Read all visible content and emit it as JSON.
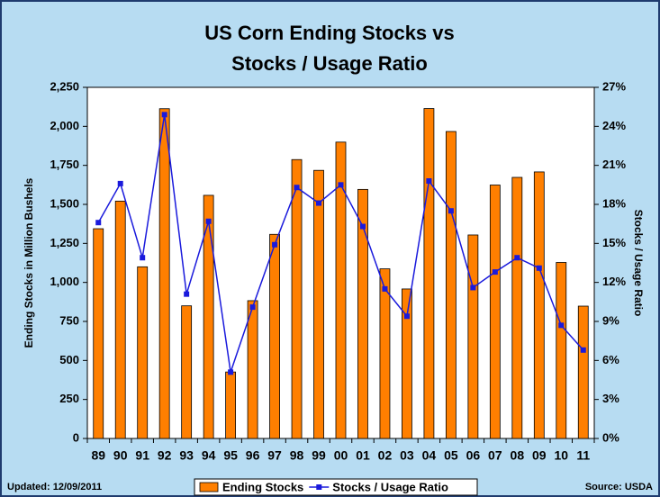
{
  "chart_data": {
    "type": "bar_line",
    "title": [
      "US Corn Ending Stocks vs",
      "Stocks / Usage Ratio"
    ],
    "y_label": "Ending Stocks in Million Bushels",
    "y2_label": "Stocks / Usage Ratio",
    "annotations": [
      "Updated: 12/09/2011",
      "Source: USDA"
    ],
    "categories": [
      "89",
      "90",
      "91",
      "92",
      "93",
      "94",
      "95",
      "96",
      "97",
      "98",
      "99",
      "00",
      "01",
      "02",
      "03",
      "04",
      "05",
      "06",
      "07",
      "08",
      "09",
      "10",
      "11"
    ],
    "series": [
      {
        "name": "Ending Stocks",
        "type": "bar",
        "color": "#ff7f00",
        "values": [
          1344,
          1521,
          1100,
          2113,
          850,
          1558,
          426,
          883,
          1308,
          1787,
          1718,
          1899,
          1596,
          1087,
          958,
          2114,
          1967,
          1304,
          1624,
          1673,
          1708,
          1128,
          848
        ]
      },
      {
        "name": "Stocks / Usage Ratio",
        "type": "line",
        "axis": "y2",
        "color": "#1a1adc",
        "values": [
          16.6,
          19.6,
          13.9,
          24.9,
          11.1,
          16.7,
          5.1,
          10.1,
          14.9,
          19.3,
          18.1,
          19.5,
          16.3,
          11.5,
          9.4,
          19.8,
          17.5,
          11.6,
          12.8,
          13.9,
          13.1,
          8.7,
          6.8
        ]
      }
    ],
    "ylim": [
      0,
      2250
    ],
    "yticks": [
      0,
      250,
      500,
      750,
      {
        "value": 1000,
        "label": "1,000"
      },
      {
        "value": 1250,
        "label": "1,250"
      },
      {
        "value": 1500,
        "label": "1,500"
      },
      {
        "value": 1750,
        "label": "1,750"
      },
      {
        "value": 2000,
        "label": "2,000"
      },
      {
        "value": 2250,
        "label": "2,250"
      }
    ],
    "y2lim": [
      0,
      27
    ],
    "y2ticks": [
      {
        "value": 0,
        "label": "0%"
      },
      {
        "value": 3,
        "label": "3%"
      },
      {
        "value": 6,
        "label": "6%"
      },
      {
        "value": 9,
        "label": "9%"
      },
      {
        "value": 12,
        "label": "12%"
      },
      {
        "value": 15,
        "label": "15%"
      },
      {
        "value": 18,
        "label": "18%"
      },
      {
        "value": 21,
        "label": "21%"
      },
      {
        "value": 24,
        "label": "24%"
      },
      {
        "value": 27,
        "label": "27%"
      }
    ],
    "grid": false,
    "legend": "bottom"
  }
}
